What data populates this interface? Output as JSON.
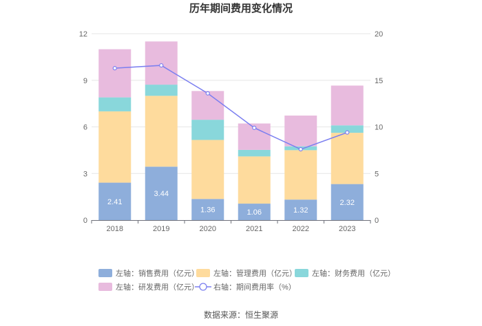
{
  "chart_data": {
    "type": "bar",
    "title": "历年期间费用变化情况",
    "categories": [
      "2018",
      "2019",
      "2020",
      "2021",
      "2022",
      "2023"
    ],
    "left_axis": {
      "ticks": [
        "0",
        "3",
        "6",
        "9",
        "12"
      ],
      "ylim": [
        0,
        12
      ]
    },
    "right_axis": {
      "ticks": [
        "0",
        "5",
        "10",
        "15",
        "20"
      ],
      "ylim": [
        0,
        20
      ]
    },
    "series": [
      {
        "name": "左轴：销售费用（亿元）",
        "type": "bar",
        "axis": "left",
        "color": "#8eaedb",
        "values": [
          2.41,
          3.44,
          1.36,
          1.06,
          1.32,
          2.32
        ],
        "labels": [
          "2.41",
          "3.44",
          "1.36",
          "1.06",
          "1.32",
          "2.32"
        ]
      },
      {
        "name": "左轴：管理费用（亿元）",
        "type": "bar",
        "axis": "left",
        "color": "#fedb9d",
        "values": [
          4.59,
          4.56,
          3.8,
          3.04,
          3.18,
          3.3
        ]
      },
      {
        "name": "左轴：财务费用（亿元）",
        "type": "bar",
        "axis": "left",
        "color": "#89d7db",
        "values": [
          0.9,
          0.72,
          1.3,
          0.42,
          0.25,
          0.48
        ]
      },
      {
        "name": "左轴：研发费用（亿元）",
        "type": "bar",
        "axis": "left",
        "color": "#e8bbde",
        "values": [
          3.1,
          2.78,
          1.85,
          1.7,
          1.98,
          2.56
        ]
      },
      {
        "name": "右轴：期间费用率（%）",
        "type": "line",
        "axis": "right",
        "color": "#7b7ff0",
        "values": [
          16.3,
          16.6,
          13.6,
          9.9,
          7.6,
          9.4
        ]
      }
    ]
  },
  "source": "数据来源：恒生聚源"
}
